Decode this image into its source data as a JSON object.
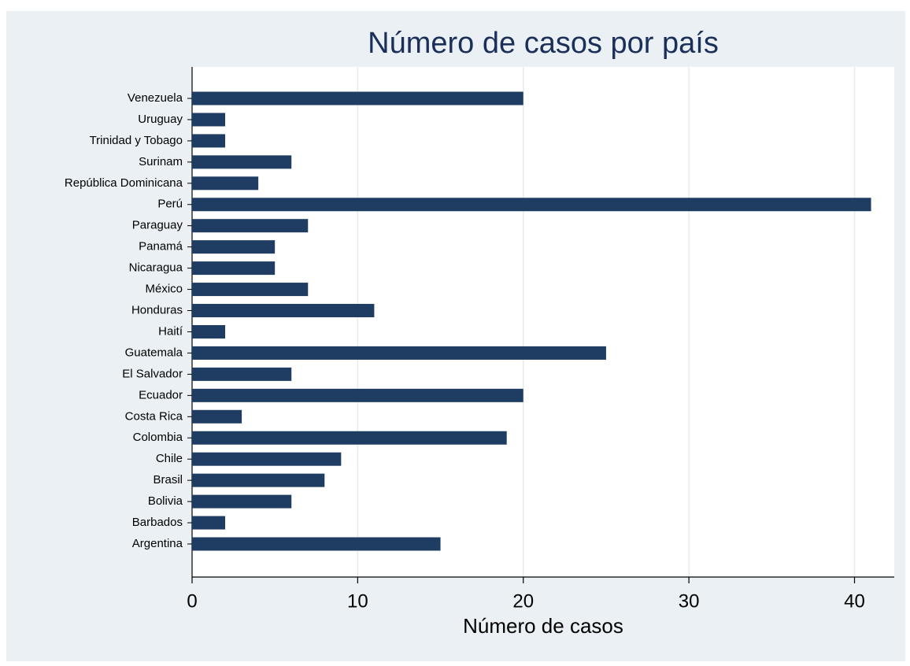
{
  "chart_data": {
    "type": "bar",
    "orientation": "horizontal",
    "title": "Número de casos por país",
    "x_label": "Número de casos",
    "categories": [
      "Venezuela",
      "Uruguay",
      "Trinidad y Tobago",
      "Surinam",
      "República Dominicana",
      "Perú",
      "Paraguay",
      "Panamá",
      "Nicaragua",
      "México",
      "Honduras",
      "Haití",
      "Guatemala",
      "El Salvador",
      "Ecuador",
      "Costa Rica",
      "Colombia",
      "Chile",
      "Brasil",
      "Bolivia",
      "Barbados",
      "Argentina"
    ],
    "values": [
      20,
      2,
      2,
      6,
      4,
      41,
      7,
      5,
      5,
      7,
      11,
      2,
      25,
      6,
      20,
      3,
      19,
      9,
      8,
      6,
      2,
      15
    ],
    "color": "#1f3d63",
    "xlim": [
      0,
      42.4
    ],
    "xticks": [
      0,
      10,
      20,
      30,
      40
    ],
    "grid": true
  }
}
